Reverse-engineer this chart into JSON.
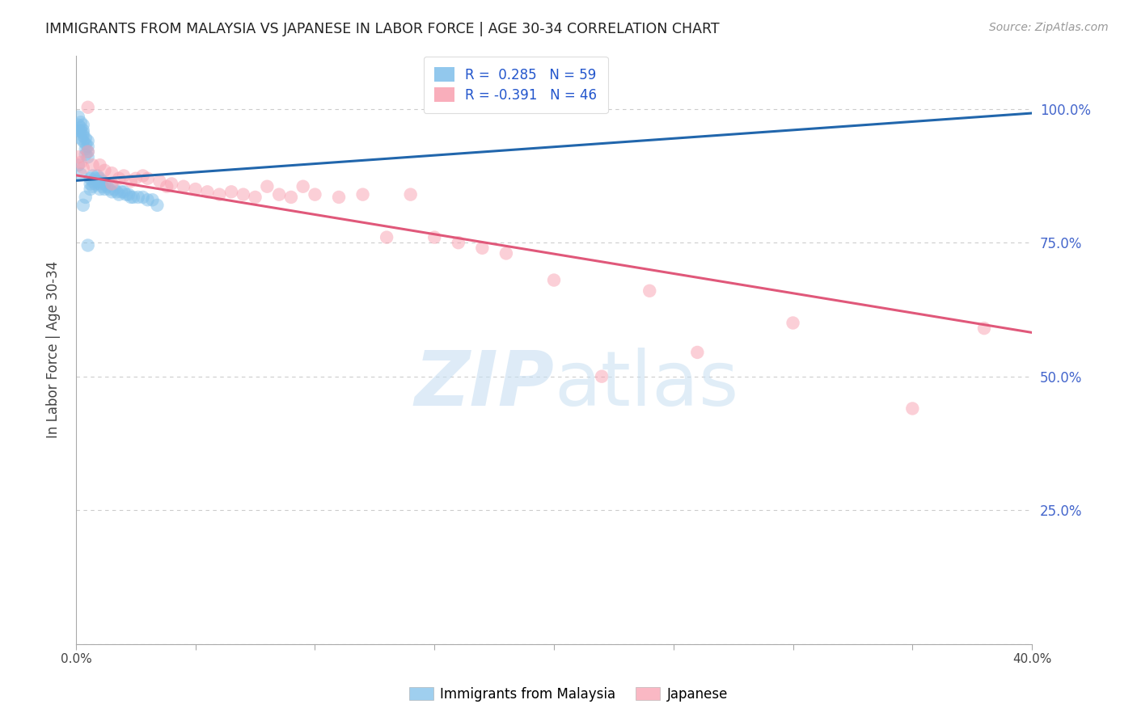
{
  "title": "IMMIGRANTS FROM MALAYSIA VS JAPANESE IN LABOR FORCE | AGE 30-34 CORRELATION CHART",
  "source": "Source: ZipAtlas.com",
  "ylabel": "In Labor Force | Age 30-34",
  "xlim": [
    0.0,
    0.4
  ],
  "ylim": [
    0.0,
    1.1
  ],
  "xtick_positions": [
    0.0,
    0.05,
    0.1,
    0.15,
    0.2,
    0.25,
    0.3,
    0.35,
    0.4
  ],
  "xticklabels": [
    "0.0%",
    "",
    "",
    "",
    "",
    "",
    "",
    "",
    "40.0%"
  ],
  "ytick_positions": [
    0.0,
    0.25,
    0.5,
    0.75,
    1.0
  ],
  "ytick_labels_right": [
    "",
    "25.0%",
    "50.0%",
    "75.0%",
    "100.0%"
  ],
  "grid_color": "#cccccc",
  "background_color": "#ffffff",
  "malaysia_color": "#7fbfea",
  "japanese_color": "#f9a0b0",
  "malaysia_line_color": "#2166ac",
  "japanese_line_color": "#e0587a",
  "R_malaysia": 0.285,
  "N_malaysia": 59,
  "R_japanese": -0.391,
  "N_japanese": 46,
  "legend_label_malaysia": "Immigrants from Malaysia",
  "legend_label_japanese": "Japanese",
  "malaysia_x": [
    0.001,
    0.001,
    0.001,
    0.002,
    0.002,
    0.002,
    0.002,
    0.003,
    0.003,
    0.003,
    0.003,
    0.003,
    0.004,
    0.004,
    0.004,
    0.004,
    0.005,
    0.005,
    0.005,
    0.005,
    0.006,
    0.006,
    0.006,
    0.007,
    0.007,
    0.007,
    0.008,
    0.008,
    0.009,
    0.009,
    0.01,
    0.01,
    0.01,
    0.011,
    0.011,
    0.012,
    0.012,
    0.013,
    0.014,
    0.015,
    0.016,
    0.017,
    0.018,
    0.019,
    0.02,
    0.021,
    0.022,
    0.023,
    0.024,
    0.026,
    0.028,
    0.03,
    0.032,
    0.034,
    0.001,
    0.002,
    0.003,
    0.004,
    0.005
  ],
  "malaysia_y": [
    0.97,
    0.96,
    0.985,
    0.965,
    0.975,
    0.958,
    0.945,
    0.97,
    0.96,
    0.95,
    0.94,
    0.955,
    0.945,
    0.935,
    0.925,
    0.915,
    0.94,
    0.93,
    0.92,
    0.91,
    0.87,
    0.86,
    0.85,
    0.875,
    0.865,
    0.855,
    0.87,
    0.86,
    0.875,
    0.865,
    0.87,
    0.86,
    0.85,
    0.865,
    0.855,
    0.86,
    0.85,
    0.855,
    0.85,
    0.845,
    0.85,
    0.845,
    0.84,
    0.845,
    0.845,
    0.84,
    0.84,
    0.835,
    0.835,
    0.835,
    0.835,
    0.83,
    0.83,
    0.82,
    0.895,
    0.878,
    0.82,
    0.835,
    0.745
  ],
  "japanese_x": [
    0.001,
    0.002,
    0.003,
    0.005,
    0.007,
    0.01,
    0.012,
    0.015,
    0.018,
    0.02,
    0.023,
    0.025,
    0.028,
    0.03,
    0.035,
    0.038,
    0.04,
    0.045,
    0.05,
    0.055,
    0.06,
    0.065,
    0.07,
    0.075,
    0.08,
    0.085,
    0.09,
    0.095,
    0.1,
    0.11,
    0.12,
    0.13,
    0.14,
    0.15,
    0.16,
    0.17,
    0.18,
    0.2,
    0.22,
    0.24,
    0.26,
    0.3,
    0.35,
    0.38,
    0.005,
    0.015
  ],
  "japanese_y": [
    0.91,
    0.9,
    0.89,
    0.92,
    0.895,
    0.895,
    0.885,
    0.88,
    0.87,
    0.875,
    0.865,
    0.87,
    0.875,
    0.87,
    0.865,
    0.855,
    0.86,
    0.855,
    0.85,
    0.845,
    0.84,
    0.845,
    0.84,
    0.835,
    0.855,
    0.84,
    0.835,
    0.855,
    0.84,
    0.835,
    0.84,
    0.76,
    0.84,
    0.76,
    0.75,
    0.74,
    0.73,
    0.68,
    0.5,
    0.66,
    0.545,
    0.6,
    0.44,
    0.59,
    1.003,
    0.86
  ],
  "malaysia_line_x0": 0.0,
  "malaysia_line_y0": 0.866,
  "malaysia_line_x1": 0.4,
  "malaysia_line_y1": 0.992,
  "japanese_line_x0": 0.0,
  "japanese_line_y0": 0.876,
  "japanese_line_x1": 0.4,
  "japanese_line_y1": 0.582
}
